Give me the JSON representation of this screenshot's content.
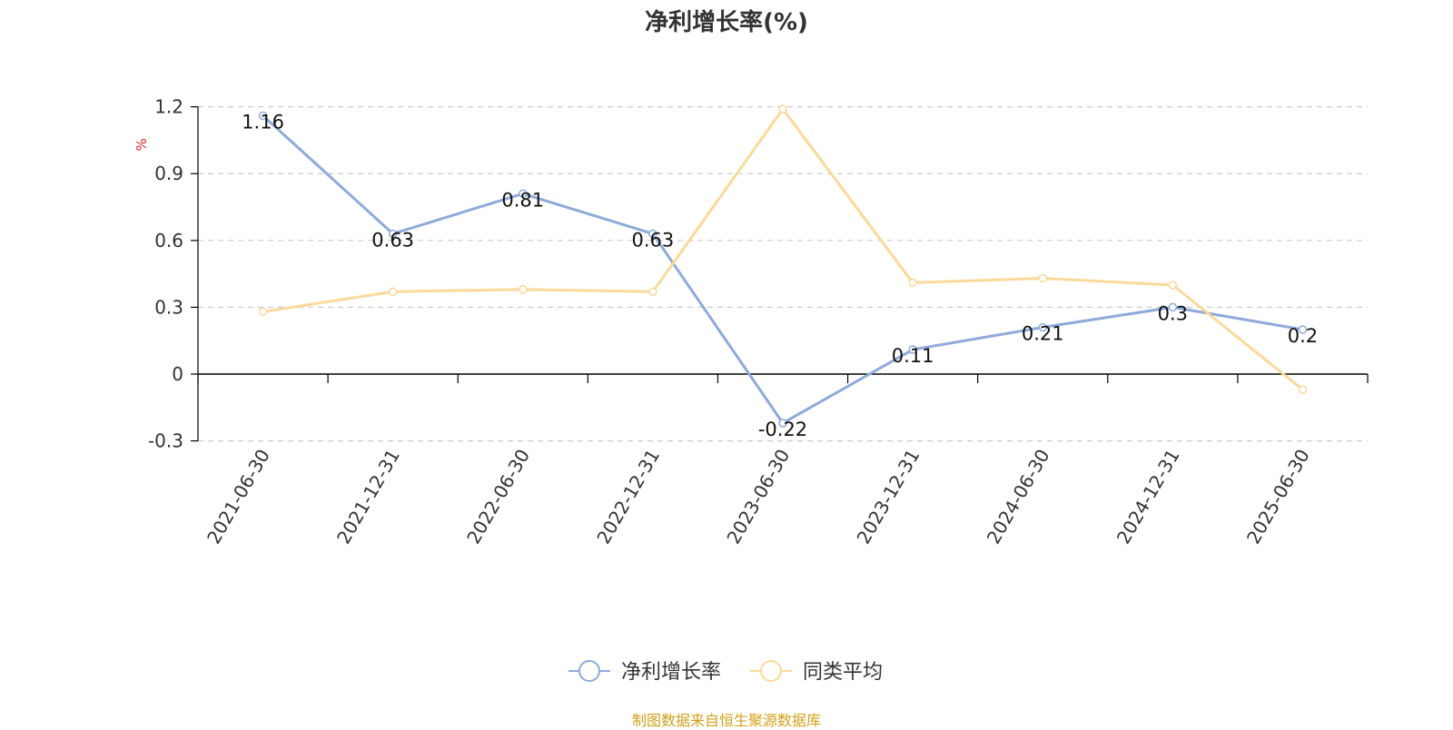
{
  "title": "净利增长率(%)",
  "source": "制图数据来自恒生聚源数据库",
  "colors": {
    "axis": "#000000",
    "grid": "#cccccc",
    "unit": "#e02020"
  },
  "chart_data": {
    "type": "line",
    "title": "净利增长率(%)",
    "ylabel": "%",
    "xlabel": "",
    "ylim": [
      -0.3,
      1.2
    ],
    "yticks": [
      -0.3,
      0,
      0.3,
      0.6,
      0.9,
      1.2
    ],
    "ytick_labels": [
      "-0.3",
      "0",
      "0.3",
      "0.6",
      "0.9",
      "1.2"
    ],
    "grid": true,
    "legend_position": "bottom-center",
    "categories": [
      "2021-06-30",
      "2021-12-31",
      "2022-06-30",
      "2022-12-31",
      "2023-06-30",
      "2023-12-31",
      "2024-06-30",
      "2024-12-31",
      "2025-06-30"
    ],
    "series": [
      {
        "name": "净利增长率",
        "color": "#8eaadb",
        "values": [
          1.16,
          0.63,
          0.81,
          0.63,
          -0.22,
          0.11,
          0.21,
          0.3,
          0.2
        ],
        "labels": [
          "1.16",
          "0.63",
          "0.81",
          "0.63",
          "-0.22",
          "0.11",
          "0.21",
          "0.3",
          "0.2"
        ]
      },
      {
        "name": "同类平均",
        "color": "#fbd99a",
        "values": [
          0.28,
          0.37,
          0.38,
          0.37,
          1.19,
          0.41,
          0.43,
          0.4,
          -0.07
        ]
      }
    ]
  }
}
